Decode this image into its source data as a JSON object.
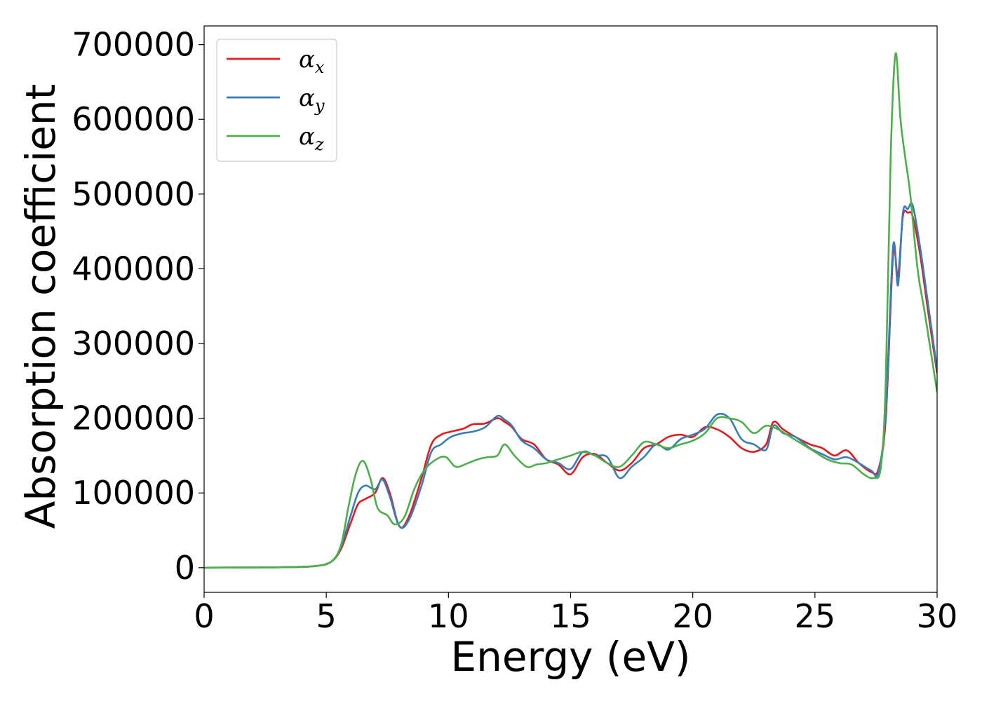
{
  "chart_data": {
    "type": "line",
    "xlabel": "Energy (eV)",
    "ylabel": "Absorption coefficient",
    "xlim": [
      0,
      30
    ],
    "ylim": [
      -33000,
      725000
    ],
    "x_ticks": [
      "0",
      "5",
      "10",
      "15",
      "20",
      "25",
      "30"
    ],
    "y_ticks": [
      "0",
      "100000",
      "200000",
      "300000",
      "400000",
      "500000",
      "600000",
      "700000"
    ],
    "grid": false,
    "legend_position": "top-left",
    "series": [
      {
        "name": "α_x",
        "label_main": "α",
        "label_sub": "x",
        "color": "#e41a1c",
        "x": [
          0,
          3,
          4.5,
          5.2,
          5.6,
          6.0,
          6.3,
          6.6,
          7.0,
          7.3,
          7.6,
          8.0,
          8.4,
          8.9,
          9.3,
          9.7,
          10.1,
          10.6,
          11.0,
          11.5,
          12.0,
          12.3,
          12.6,
          13.0,
          13.5,
          14.0,
          14.5,
          15.0,
          15.5,
          16.0,
          16.5,
          17.0,
          17.5,
          18.0,
          18.5,
          19.0,
          19.5,
          20.0,
          20.5,
          21.0,
          21.5,
          22.0,
          22.5,
          23.0,
          23.3,
          23.7,
          24.2,
          24.8,
          25.3,
          25.8,
          26.3,
          26.8,
          27.3,
          27.6,
          27.9,
          28.2,
          28.4,
          28.6,
          28.8,
          29.0,
          29.3,
          29.6,
          30.0
        ],
        "y": [
          0,
          500,
          2000,
          8000,
          25000,
          60000,
          85000,
          92000,
          100000,
          120000,
          100000,
          55000,
          70000,
          120000,
          165000,
          178000,
          182000,
          186000,
          192000,
          193000,
          200000,
          195000,
          188000,
          172000,
          165000,
          145000,
          138000,
          125000,
          148000,
          152000,
          140000,
          130000,
          140000,
          160000,
          165000,
          175000,
          178000,
          175000,
          188000,
          185000,
          175000,
          160000,
          155000,
          165000,
          195000,
          185000,
          175000,
          165000,
          160000,
          150000,
          157000,
          140000,
          128000,
          132000,
          200000,
          420000,
          390000,
          470000,
          475000,
          470000,
          420000,
          350000,
          260000
        ]
      },
      {
        "name": "α_y",
        "label_main": "α",
        "label_sub": "y",
        "color": "#377eb8",
        "x": [
          0,
          3,
          4.5,
          5.2,
          5.6,
          6.0,
          6.3,
          6.6,
          7.0,
          7.3,
          7.6,
          8.0,
          8.4,
          8.9,
          9.3,
          9.7,
          10.1,
          10.6,
          11.0,
          11.5,
          12.0,
          12.3,
          12.6,
          13.0,
          13.5,
          14.0,
          14.5,
          15.0,
          15.5,
          16.0,
          16.5,
          17.0,
          17.5,
          18.0,
          18.5,
          19.0,
          19.5,
          20.0,
          20.5,
          21.0,
          21.5,
          22.0,
          22.5,
          23.0,
          23.3,
          23.7,
          24.2,
          24.8,
          25.3,
          25.8,
          26.3,
          26.8,
          27.3,
          27.6,
          27.9,
          28.2,
          28.4,
          28.6,
          28.8,
          29.0,
          29.3,
          29.6,
          30.0
        ],
        "y": [
          0,
          500,
          2000,
          8000,
          28000,
          70000,
          100000,
          110000,
          105000,
          118000,
          95000,
          55000,
          65000,
          110000,
          155000,
          165000,
          175000,
          180000,
          182000,
          188000,
          203000,
          198000,
          190000,
          170000,
          160000,
          145000,
          140000,
          132000,
          155000,
          150000,
          148000,
          120000,
          135000,
          148000,
          165000,
          158000,
          172000,
          178000,
          186000,
          205000,
          200000,
          172000,
          165000,
          158000,
          190000,
          180000,
          175000,
          160000,
          152000,
          145000,
          148000,
          140000,
          130000,
          128000,
          210000,
          430000,
          378000,
          475000,
          480000,
          485000,
          430000,
          360000,
          265000
        ]
      },
      {
        "name": "α_z",
        "label_main": "α",
        "label_sub": "z",
        "color": "#4daf4a",
        "x": [
          0,
          3,
          4.5,
          5.2,
          5.6,
          5.9,
          6.2,
          6.5,
          6.8,
          7.1,
          7.5,
          7.8,
          8.2,
          8.6,
          9.0,
          9.5,
          9.9,
          10.3,
          10.8,
          11.2,
          11.6,
          12.0,
          12.3,
          12.7,
          13.2,
          13.6,
          14.0,
          14.5,
          15.0,
          15.5,
          16.0,
          16.5,
          17.0,
          17.5,
          18.0,
          18.5,
          19.0,
          19.5,
          20.0,
          20.5,
          21.0,
          21.5,
          22.0,
          22.5,
          23.0,
          23.5,
          24.0,
          24.5,
          25.0,
          25.5,
          26.0,
          26.5,
          27.0,
          27.4,
          27.7,
          27.9,
          28.1,
          28.3,
          28.5,
          28.7,
          28.9,
          29.2,
          29.5,
          30.0
        ],
        "y": [
          0,
          500,
          2000,
          8000,
          30000,
          80000,
          125000,
          143000,
          120000,
          80000,
          70000,
          58000,
          68000,
          105000,
          130000,
          145000,
          148000,
          135000,
          140000,
          145000,
          148000,
          150000,
          165000,
          150000,
          135000,
          138000,
          140000,
          145000,
          150000,
          155000,
          150000,
          140000,
          135000,
          150000,
          168000,
          165000,
          160000,
          165000,
          170000,
          180000,
          200000,
          200000,
          195000,
          180000,
          190000,
          185000,
          175000,
          165000,
          155000,
          145000,
          140000,
          138000,
          125000,
          120000,
          135000,
          250000,
          550000,
          688000,
          600000,
          548000,
          500000,
          400000,
          340000,
          235000
        ]
      }
    ]
  }
}
